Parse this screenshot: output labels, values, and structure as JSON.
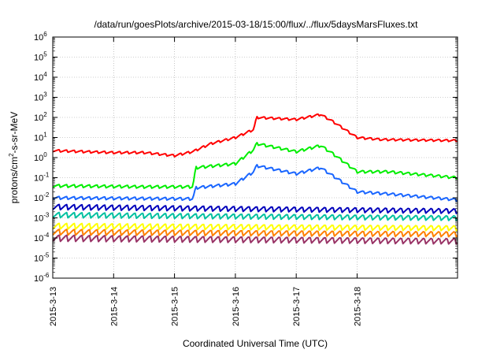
{
  "chart_data": {
    "type": "line",
    "title": "/data/run/goesPlots/archive/2015-03-18/15:00/flux/../flux/5daysMarsFluxes.txt",
    "xlabel": "Coordinated Universal Time (UTC)",
    "ylabel_parts": [
      "protons/cm",
      "2",
      "-s-sr-MeV"
    ],
    "yscale": "log",
    "ylim_exp": [
      -6,
      6
    ],
    "ytick_exponents": [
      -6,
      -5,
      -4,
      -3,
      -2,
      -1,
      0,
      1,
      2,
      3,
      4,
      5,
      6
    ],
    "ytick_base": "10",
    "xrange_days": [
      0,
      6.65
    ],
    "xticks": [
      {
        "day": 0,
        "label": "2015-3-13"
      },
      {
        "day": 1,
        "label": "2015-3-14"
      },
      {
        "day": 2,
        "label": "2015-3-15"
      },
      {
        "day": 3,
        "label": "2015-3-16"
      },
      {
        "day": 4,
        "label": "2015-3-17"
      },
      {
        "day": 5,
        "label": "2015-3-18"
      }
    ],
    "grid": true,
    "sawtooth_period_days": 0.125,
    "series": [
      {
        "color": "#ff0000",
        "amp": 0.12,
        "points": [
          [
            0,
            0.35
          ],
          [
            1,
            0.25
          ],
          [
            1.5,
            0.25
          ],
          [
            2.0,
            0.1
          ],
          [
            2.3,
            0.3
          ],
          [
            2.6,
            0.7
          ],
          [
            3.0,
            1.0
          ],
          [
            3.3,
            1.4
          ],
          [
            3.35,
            2.0
          ],
          [
            4.0,
            1.9
          ],
          [
            4.4,
            2.15
          ],
          [
            4.6,
            1.8
          ],
          [
            5.0,
            1.0
          ],
          [
            5.4,
            0.9
          ],
          [
            6.65,
            0.85
          ]
        ]
      },
      {
        "color": "#00ee00",
        "amp": 0.15,
        "points": [
          [
            0,
            -1.4
          ],
          [
            1.5,
            -1.45
          ],
          [
            2.3,
            -1.45
          ],
          [
            2.35,
            -0.5
          ],
          [
            3.0,
            -0.3
          ],
          [
            3.3,
            0.4
          ],
          [
            3.35,
            0.7
          ],
          [
            4.0,
            0.3
          ],
          [
            4.4,
            0.6
          ],
          [
            4.6,
            0.2
          ],
          [
            5.0,
            -0.7
          ],
          [
            5.5,
            -0.7
          ],
          [
            6.65,
            -1.0
          ]
        ]
      },
      {
        "color": "#1a66ff",
        "amp": 0.15,
        "points": [
          [
            0,
            -2.0
          ],
          [
            2.3,
            -2.05
          ],
          [
            2.35,
            -1.5
          ],
          [
            3.0,
            -1.3
          ],
          [
            3.3,
            -0.7
          ],
          [
            3.35,
            -0.4
          ],
          [
            4.0,
            -0.8
          ],
          [
            4.4,
            -0.5
          ],
          [
            4.6,
            -0.9
          ],
          [
            5.0,
            -1.7
          ],
          [
            5.5,
            -1.8
          ],
          [
            6.65,
            -2.1
          ]
        ]
      },
      {
        "color": "#0000bb",
        "amp": 0.28,
        "points": [
          [
            0,
            -2.45
          ],
          [
            6.65,
            -2.65
          ]
        ]
      },
      {
        "color": "#00c0a0",
        "amp": 0.28,
        "points": [
          [
            0,
            -2.85
          ],
          [
            6.65,
            -3.0
          ]
        ]
      },
      {
        "color": "#ffff00",
        "amp": 0.3,
        "points": [
          [
            0,
            -3.4
          ],
          [
            6.65,
            -3.5
          ]
        ]
      },
      {
        "color": "#ff8000",
        "amp": 0.3,
        "points": [
          [
            0,
            -3.7
          ],
          [
            6.65,
            -3.8
          ]
        ]
      },
      {
        "color": "#993366",
        "amp": 0.33,
        "points": [
          [
            0,
            -4.0
          ],
          [
            6.65,
            -4.15
          ]
        ]
      }
    ]
  }
}
